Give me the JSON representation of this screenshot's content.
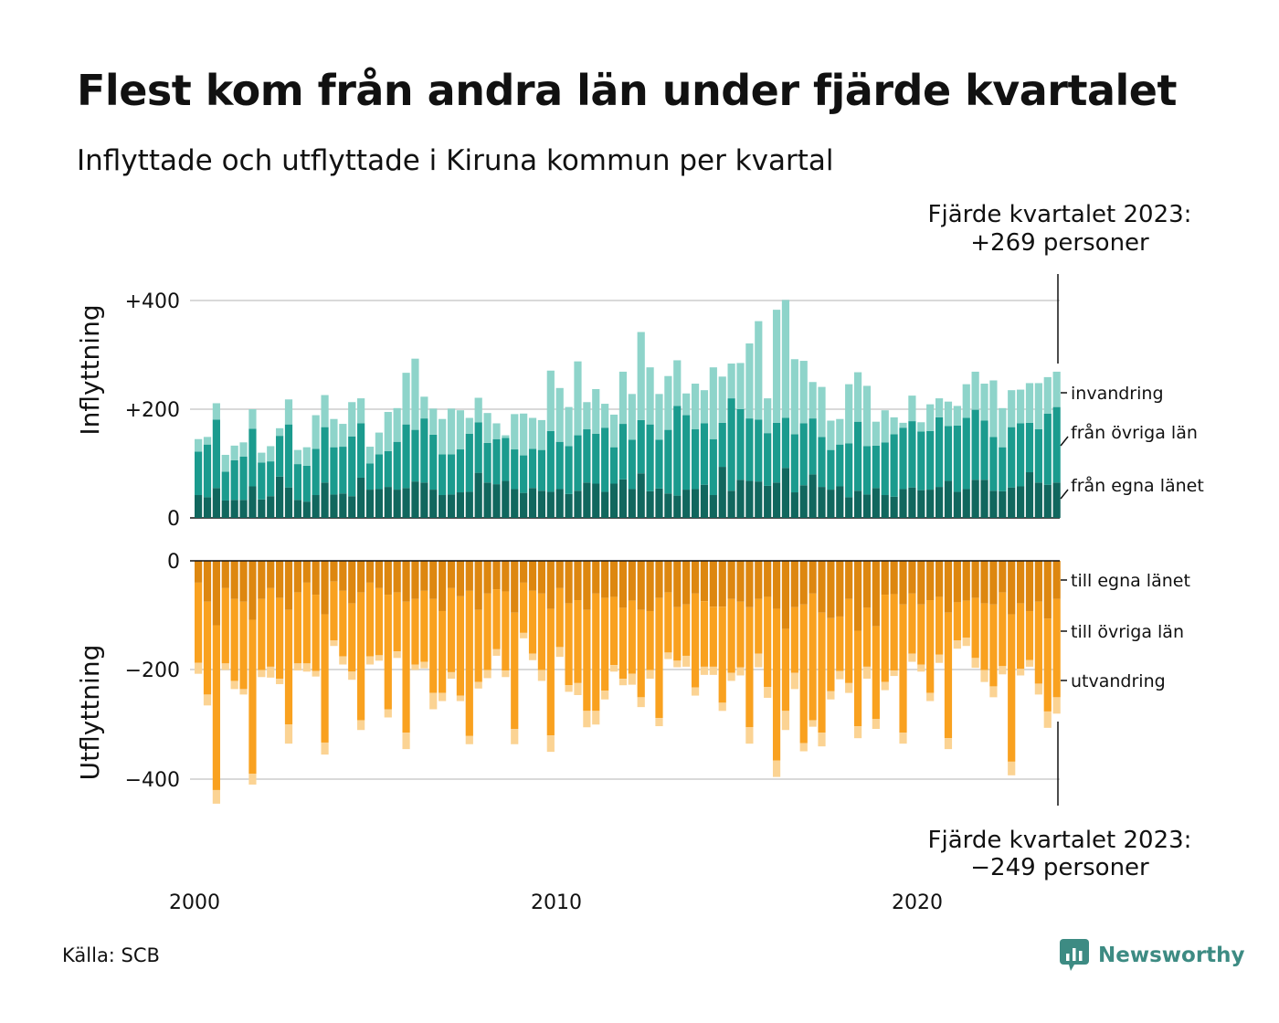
{
  "title": "Flest kom från andra län under fjärde kvartalet",
  "subtitle": "Inflyttade och utflyttade i Kiruna kommun per kvartal",
  "source": "Källa: SCB",
  "brand": "Newsworthy",
  "colors": {
    "in_egna": "#11675e",
    "in_ovriga": "#1b9b8e",
    "in_invandring": "#8ed4ca",
    "out_egna": "#dd8710",
    "out_ovriga": "#f9a11f",
    "out_utvandring": "#fbd393",
    "grid": "#d9d9d9",
    "brand": "#3d8b83"
  },
  "chart_data": [
    {
      "type": "bar",
      "stacked": true,
      "panel": "inflyttning",
      "ylabel": "Inflyttning",
      "ylim": [
        0,
        400
      ],
      "yticks": [
        "+400",
        "+200",
        "0"
      ],
      "ytick_values": [
        400,
        200,
        0
      ],
      "x_start": "2000 Q1",
      "x_end": "2023 Q4",
      "xticks": [
        "2000",
        "2010",
        "2020"
      ],
      "grid": true,
      "annotation": {
        "line1": "Fjärde kvartalet 2023:",
        "line2": "+269 personer"
      },
      "series": [
        {
          "name": "från egna länet",
          "values": [
            42,
            38,
            55,
            32,
            33,
            33,
            58,
            34,
            40,
            76,
            56,
            33,
            30,
            42,
            65,
            43,
            45,
            40,
            74,
            52,
            53,
            57,
            52,
            55,
            67,
            65,
            52,
            42,
            43,
            47,
            48,
            83,
            65,
            62,
            68,
            53,
            46,
            55,
            50,
            48,
            53,
            44,
            50,
            65,
            63,
            48,
            63,
            71,
            53,
            82,
            49,
            54,
            45,
            41,
            52,
            53,
            61,
            42,
            94,
            50,
            70,
            68,
            67,
            59,
            65,
            92,
            47,
            60,
            80,
            57,
            52,
            58,
            38,
            50,
            43,
            55,
            42,
            39,
            53,
            56,
            51,
            52,
            57,
            68,
            48,
            53,
            70,
            70,
            50,
            49,
            56,
            58,
            84,
            65,
            61,
            65
          ]
        },
        {
          "name": "från övriga län",
          "values": [
            80,
            97,
            126,
            53,
            73,
            80,
            106,
            68,
            64,
            75,
            116,
            66,
            66,
            85,
            102,
            87,
            86,
            110,
            100,
            48,
            64,
            66,
            88,
            117,
            95,
            118,
            101,
            75,
            74,
            79,
            107,
            93,
            73,
            83,
            79,
            73,
            69,
            72,
            75,
            112,
            87,
            88,
            102,
            98,
            92,
            118,
            67,
            102,
            91,
            98,
            123,
            90,
            117,
            165,
            137,
            110,
            113,
            103,
            81,
            170,
            130,
            115,
            114,
            97,
            110,
            92,
            107,
            114,
            103,
            92,
            73,
            77,
            99,
            127,
            89,
            78,
            97,
            115,
            113,
            122,
            108,
            108,
            128,
            101,
            122,
            131,
            129,
            109,
            99,
            81,
            111,
            116,
            91,
            98,
            131,
            139
          ]
        },
        {
          "name": "invandring",
          "values": [
            23,
            14,
            30,
            31,
            27,
            26,
            36,
            18,
            28,
            14,
            46,
            26,
            34,
            62,
            59,
            52,
            42,
            63,
            46,
            31,
            40,
            72,
            62,
            95,
            131,
            40,
            48,
            65,
            84,
            72,
            29,
            45,
            55,
            29,
            5,
            65,
            77,
            57,
            55,
            111,
            99,
            72,
            136,
            50,
            82,
            44,
            60,
            96,
            84,
            162,
            105,
            84,
            99,
            84,
            40,
            84,
            61,
            132,
            85,
            64,
            85,
            138,
            181,
            64,
            208,
            217,
            138,
            115,
            67,
            92,
            54,
            47,
            109,
            91,
            111,
            44,
            59,
            31,
            9,
            47,
            17,
            49,
            35,
            45,
            36,
            62,
            70,
            68,
            104,
            72,
            68,
            62,
            73,
            85,
            67,
            65
          ]
        }
      ]
    },
    {
      "type": "bar",
      "stacked": true,
      "panel": "utflyttning",
      "ylabel": "Utflyttning",
      "ylim": [
        -450,
        0
      ],
      "yticks": [
        "0",
        "−200",
        "−400"
      ],
      "ytick_values": [
        0,
        -200,
        -400
      ],
      "x_start": "2000 Q1",
      "x_end": "2023 Q4",
      "xticks": [
        "2000",
        "2010",
        "2020"
      ],
      "grid": true,
      "annotation": {
        "line1": "Fjärde kvartalet 2023:",
        "line2": "−249 personer"
      },
      "series": [
        {
          "name": "till egna länet",
          "values": [
            -40,
            -75,
            -118,
            -50,
            -70,
            -75,
            -108,
            -70,
            -50,
            -68,
            -90,
            -58,
            -40,
            -62,
            -98,
            -38,
            -55,
            -78,
            -58,
            -40,
            -50,
            -62,
            -58,
            -75,
            -70,
            -55,
            -70,
            -92,
            -50,
            -65,
            -55,
            -90,
            -60,
            -52,
            -56,
            -95,
            -40,
            -55,
            -60,
            -88,
            -50,
            -78,
            -72,
            -90,
            -60,
            -68,
            -66,
            -86,
            -73,
            -90,
            -92,
            -68,
            -58,
            -85,
            -80,
            -60,
            -74,
            -84,
            -84,
            -70,
            -75,
            -85,
            -70,
            -66,
            -88,
            -125,
            -85,
            -80,
            -60,
            -95,
            -105,
            -102,
            -70,
            -128,
            -86,
            -120,
            -62,
            -61,
            -80,
            -60,
            -80,
            -72,
            -66,
            -95,
            -76,
            -73,
            -68,
            -78,
            -80,
            -58,
            -98,
            -78,
            -92,
            -75,
            -106,
            -70
          ]
        },
        {
          "name": "till övriga län",
          "values": [
            -147,
            -170,
            -302,
            -138,
            -150,
            -160,
            -282,
            -130,
            -144,
            -148,
            -210,
            -130,
            -148,
            -140,
            -235,
            -108,
            -120,
            -125,
            -234,
            -135,
            -123,
            -210,
            -108,
            -240,
            -120,
            -130,
            -172,
            -150,
            -154,
            -182,
            -266,
            -132,
            -140,
            -110,
            -145,
            -213,
            -92,
            -115,
            -140,
            -232,
            -108,
            -150,
            -152,
            -185,
            -215,
            -170,
            -125,
            -130,
            -134,
            -160,
            -108,
            -220,
            -110,
            -98,
            -94,
            -172,
            -120,
            -110,
            -176,
            -135,
            -120,
            -220,
            -100,
            -165,
            -278,
            -150,
            -120,
            -254,
            -232,
            -220,
            -134,
            -100,
            -154,
            -175,
            -108,
            -170,
            -160,
            -140,
            -235,
            -110,
            -110,
            -170,
            -106,
            -230,
            -70,
            -68,
            -110,
            -122,
            -150,
            -135,
            -270,
            -120,
            -90,
            -150,
            -170,
            -180
          ]
        },
        {
          "name": "utvandring",
          "values": [
            -20,
            -20,
            -25,
            -12,
            -15,
            -10,
            -20,
            -13,
            -20,
            -10,
            -35,
            -13,
            -15,
            -10,
            -22,
            -10,
            -15,
            -15,
            -18,
            -15,
            -10,
            -15,
            -12,
            -30,
            -10,
            -12,
            -30,
            -15,
            -12,
            -10,
            -15,
            -12,
            -15,
            -12,
            -12,
            -28,
            -10,
            -12,
            -20,
            -30,
            -18,
            -12,
            -22,
            -30,
            -25,
            -16,
            -12,
            -12,
            -20,
            -18,
            -16,
            -15,
            -12,
            -12,
            -20,
            -15,
            -15,
            -15,
            -15,
            -15,
            -15,
            -30,
            -25,
            -20,
            -30,
            -35,
            -30,
            -15,
            -12,
            -25,
            -15,
            -15,
            -18,
            -22,
            -22,
            -18,
            -15,
            -10,
            -20,
            -15,
            -13,
            -15,
            -15,
            -20,
            -15,
            -15,
            -18,
            -22,
            -20,
            -15,
            -25,
            -12,
            -12,
            -20,
            -30,
            -30
          ]
        }
      ]
    }
  ]
}
